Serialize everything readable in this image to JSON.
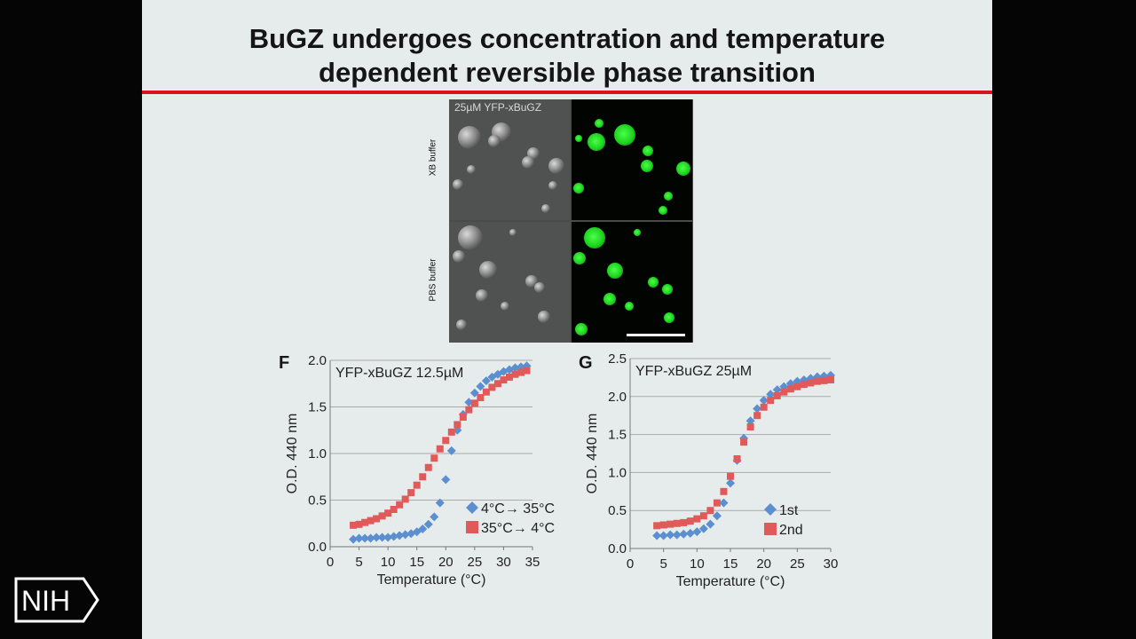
{
  "slide": {
    "title_line1": "BuGZ undergoes concentration and temperature",
    "title_line2": "dependent reversible phase transition"
  },
  "micrograph": {
    "label": "25µM YFP-xBuGZ",
    "rows": [
      "XB buffer",
      "PBS buffer"
    ]
  },
  "logo": {
    "text": "NIH"
  },
  "chart_data": [
    {
      "type": "scatter",
      "panel": "F",
      "title": "YFP-xBuGZ 12.5µM",
      "xlabel": "Temperature (°C)",
      "ylabel": "O.D. 440 nm",
      "xlim": [
        0,
        35
      ],
      "ylim": [
        0,
        2
      ],
      "xticks": [
        "0",
        "5",
        "10",
        "15",
        "20",
        "25",
        "30",
        "35"
      ],
      "yticks": [
        "0.0",
        "0.5",
        "1.0",
        "1.5",
        "2.0"
      ],
      "grid": "horizontal",
      "legend": "bottom-right",
      "series": [
        {
          "name": "4°C→ 35°C",
          "color": "#5b8fcf",
          "marker": "diamond",
          "x": [
            4,
            5,
            6,
            7,
            8,
            9,
            10,
            11,
            12,
            13,
            14,
            15,
            16,
            17,
            18,
            19,
            20,
            21,
            22,
            23,
            24,
            25,
            26,
            27,
            28,
            29,
            30,
            31,
            32,
            33,
            34
          ],
          "y": [
            0.08,
            0.09,
            0.09,
            0.09,
            0.1,
            0.1,
            0.1,
            0.11,
            0.12,
            0.13,
            0.14,
            0.16,
            0.19,
            0.24,
            0.32,
            0.47,
            0.72,
            1.03,
            1.25,
            1.42,
            1.55,
            1.65,
            1.72,
            1.78,
            1.82,
            1.85,
            1.88,
            1.9,
            1.92,
            1.93,
            1.94
          ]
        },
        {
          "name": "35°C→ 4°C",
          "color": "#e05a5a",
          "marker": "square",
          "x": [
            4,
            5,
            6,
            7,
            8,
            9,
            10,
            11,
            12,
            13,
            14,
            15,
            16,
            17,
            18,
            19,
            20,
            21,
            22,
            23,
            24,
            25,
            26,
            27,
            28,
            29,
            30,
            31,
            32,
            33,
            34
          ],
          "y": [
            0.23,
            0.24,
            0.26,
            0.28,
            0.3,
            0.33,
            0.36,
            0.4,
            0.45,
            0.51,
            0.58,
            0.66,
            0.75,
            0.85,
            0.95,
            1.05,
            1.14,
            1.23,
            1.31,
            1.39,
            1.47,
            1.54,
            1.6,
            1.66,
            1.71,
            1.75,
            1.79,
            1.82,
            1.85,
            1.87,
            1.89
          ]
        }
      ]
    },
    {
      "type": "scatter",
      "panel": "G",
      "title": "YFP-xBuGZ 25µM",
      "xlabel": "Temperature (°C)",
      "ylabel": "O.D. 440 nm",
      "xlim": [
        0,
        30
      ],
      "ylim": [
        0,
        2.5
      ],
      "xticks": [
        "0",
        "5",
        "10",
        "15",
        "20",
        "25",
        "30"
      ],
      "yticks": [
        "0.0",
        "0.5",
        "1.0",
        "1.5",
        "2.0",
        "2.5"
      ],
      "grid": "horizontal",
      "legend": "bottom-right",
      "series": [
        {
          "name": "1st",
          "color": "#5b8fcf",
          "marker": "diamond",
          "x": [
            4,
            5,
            6,
            7,
            8,
            9,
            10,
            11,
            12,
            13,
            14,
            15,
            16,
            17,
            18,
            19,
            20,
            21,
            22,
            23,
            24,
            25,
            26,
            27,
            28,
            29,
            30
          ],
          "y": [
            0.17,
            0.17,
            0.18,
            0.18,
            0.19,
            0.2,
            0.22,
            0.26,
            0.32,
            0.43,
            0.6,
            0.86,
            1.16,
            1.45,
            1.68,
            1.84,
            1.95,
            2.03,
            2.09,
            2.13,
            2.17,
            2.2,
            2.22,
            2.24,
            2.26,
            2.27,
            2.28
          ]
        },
        {
          "name": "2nd",
          "color": "#e05a5a",
          "marker": "square",
          "x": [
            4,
            5,
            6,
            7,
            8,
            9,
            10,
            11,
            12,
            13,
            14,
            15,
            16,
            17,
            18,
            19,
            20,
            21,
            22,
            23,
            24,
            25,
            26,
            27,
            28,
            29,
            30
          ],
          "y": [
            0.3,
            0.31,
            0.32,
            0.33,
            0.34,
            0.36,
            0.39,
            0.43,
            0.5,
            0.6,
            0.75,
            0.95,
            1.18,
            1.4,
            1.6,
            1.75,
            1.86,
            1.95,
            2.01,
            2.06,
            2.1,
            2.13,
            2.16,
            2.18,
            2.2,
            2.21,
            2.22
          ]
        }
      ]
    }
  ]
}
